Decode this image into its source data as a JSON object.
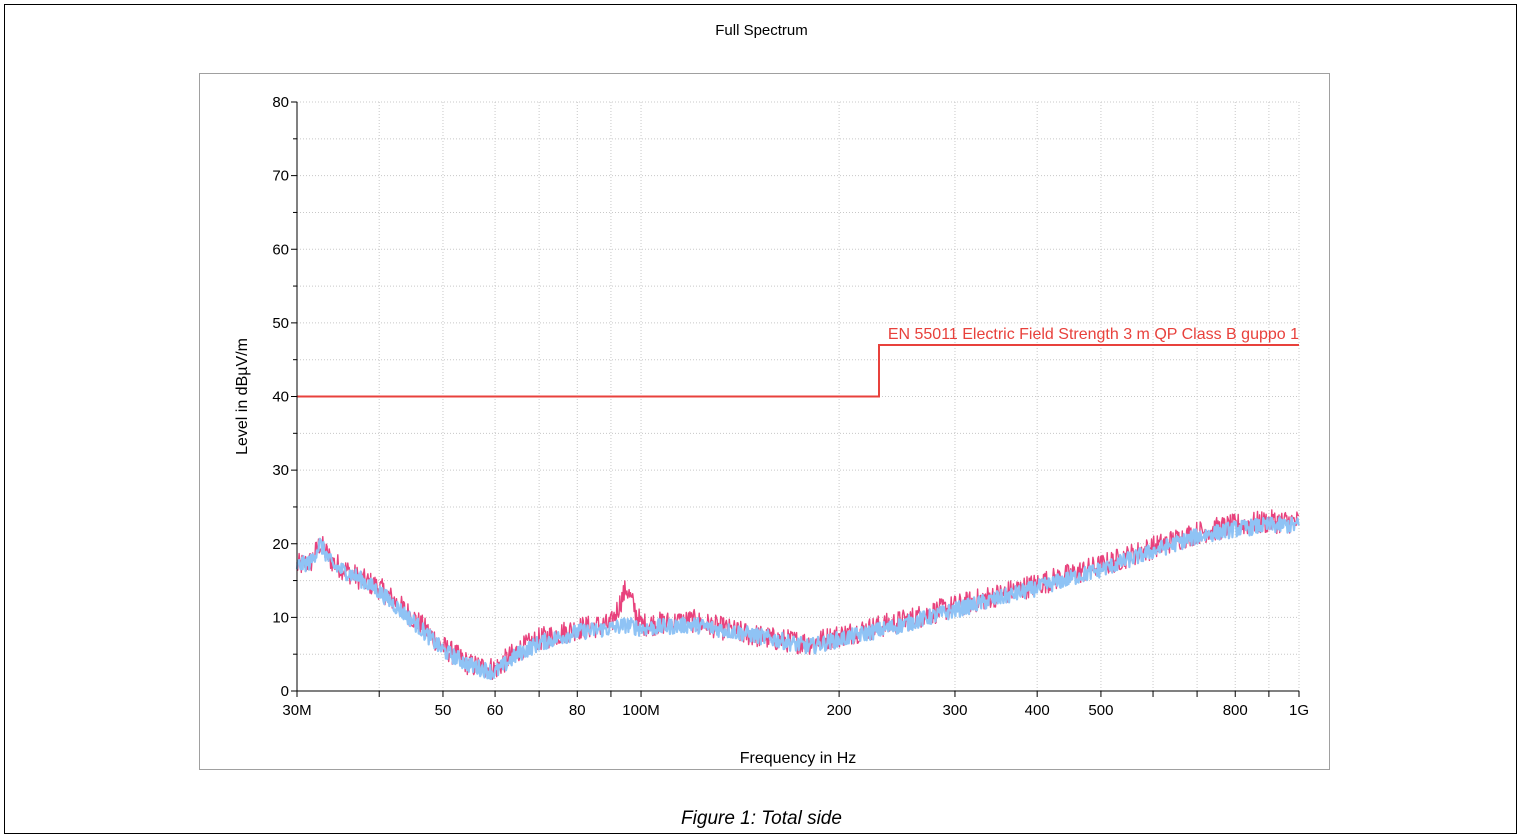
{
  "chart_data": {
    "type": "line",
    "title": "Full Spectrum",
    "xlabel": "Frequency in Hz",
    "ylabel": "Level in dBµV/m",
    "x_scale": "log",
    "xlim": [
      30000000,
      1000000000
    ],
    "ylim": [
      0,
      80
    ],
    "grid": true,
    "y_ticks": [
      "0",
      "10",
      "20",
      "30",
      "40",
      "50",
      "60",
      "70",
      "80"
    ],
    "y_tick_values": [
      0,
      10,
      20,
      30,
      40,
      50,
      60,
      70,
      80
    ],
    "x_ticks": [
      {
        "value": 30000000,
        "label": "30M"
      },
      {
        "value": 50000000,
        "label": "50"
      },
      {
        "value": 60000000,
        "label": "60"
      },
      {
        "value": 80000000,
        "label": "80"
      },
      {
        "value": 100000000,
        "label": "100M"
      },
      {
        "value": 200000000,
        "label": "200"
      },
      {
        "value": 300000000,
        "label": "300"
      },
      {
        "value": 400000000,
        "label": "400"
      },
      {
        "value": 500000000,
        "label": "500"
      },
      {
        "value": 800000000,
        "label": "800"
      },
      {
        "value": 1000000000,
        "label": "1G"
      }
    ],
    "series": [
      {
        "name": "EN 55011 Electric Field Strength 3 m QP Class B guppo 1",
        "color": "#e8413c",
        "x": [
          30000000,
          230000000,
          230000000,
          1000000000
        ],
        "y": [
          40,
          40,
          47,
          47
        ]
      },
      {
        "color": "#e8427d",
        "x": [
          30000000,
          31500000,
          32500000,
          34000000,
          37000000,
          40000000,
          45000000,
          50000000,
          55000000,
          60000000,
          65000000,
          70000000,
          80000000,
          90000000,
          95000000,
          100000000,
          120000000,
          140000000,
          160000000,
          180000000,
          200000000,
          250000000,
          300000000,
          400000000,
          500000000,
          600000000,
          700000000,
          800000000,
          900000000,
          1000000000
        ],
        "y": [
          17,
          17.5,
          20,
          17.5,
          15.5,
          14,
          10,
          6,
          3.5,
          3,
          5.5,
          7,
          8.5,
          9,
          14,
          9,
          9.5,
          8,
          7,
          6.5,
          7.5,
          9.5,
          11.5,
          14.5,
          17,
          19.5,
          21.5,
          22.5,
          23,
          23
        ]
      },
      {
        "color": "#8fc3f5",
        "x": [
          30000000,
          31500000,
          32500000,
          34000000,
          37000000,
          40000000,
          45000000,
          50000000,
          55000000,
          60000000,
          65000000,
          70000000,
          80000000,
          90000000,
          95000000,
          100000000,
          120000000,
          140000000,
          160000000,
          180000000,
          200000000,
          250000000,
          300000000,
          400000000,
          500000000,
          600000000,
          700000000,
          800000000,
          900000000,
          1000000000
        ],
        "y": [
          17,
          17.5,
          20,
          17,
          15.5,
          13.5,
          9.5,
          5.5,
          3.5,
          2.5,
          5,
          6.5,
          8,
          8.5,
          9,
          8.5,
          9,
          8,
          7,
          6,
          7,
          9,
          11,
          14,
          16.5,
          19,
          21,
          22,
          22.5,
          22.5
        ]
      }
    ]
  },
  "caption": "Figure 1:  Total side"
}
